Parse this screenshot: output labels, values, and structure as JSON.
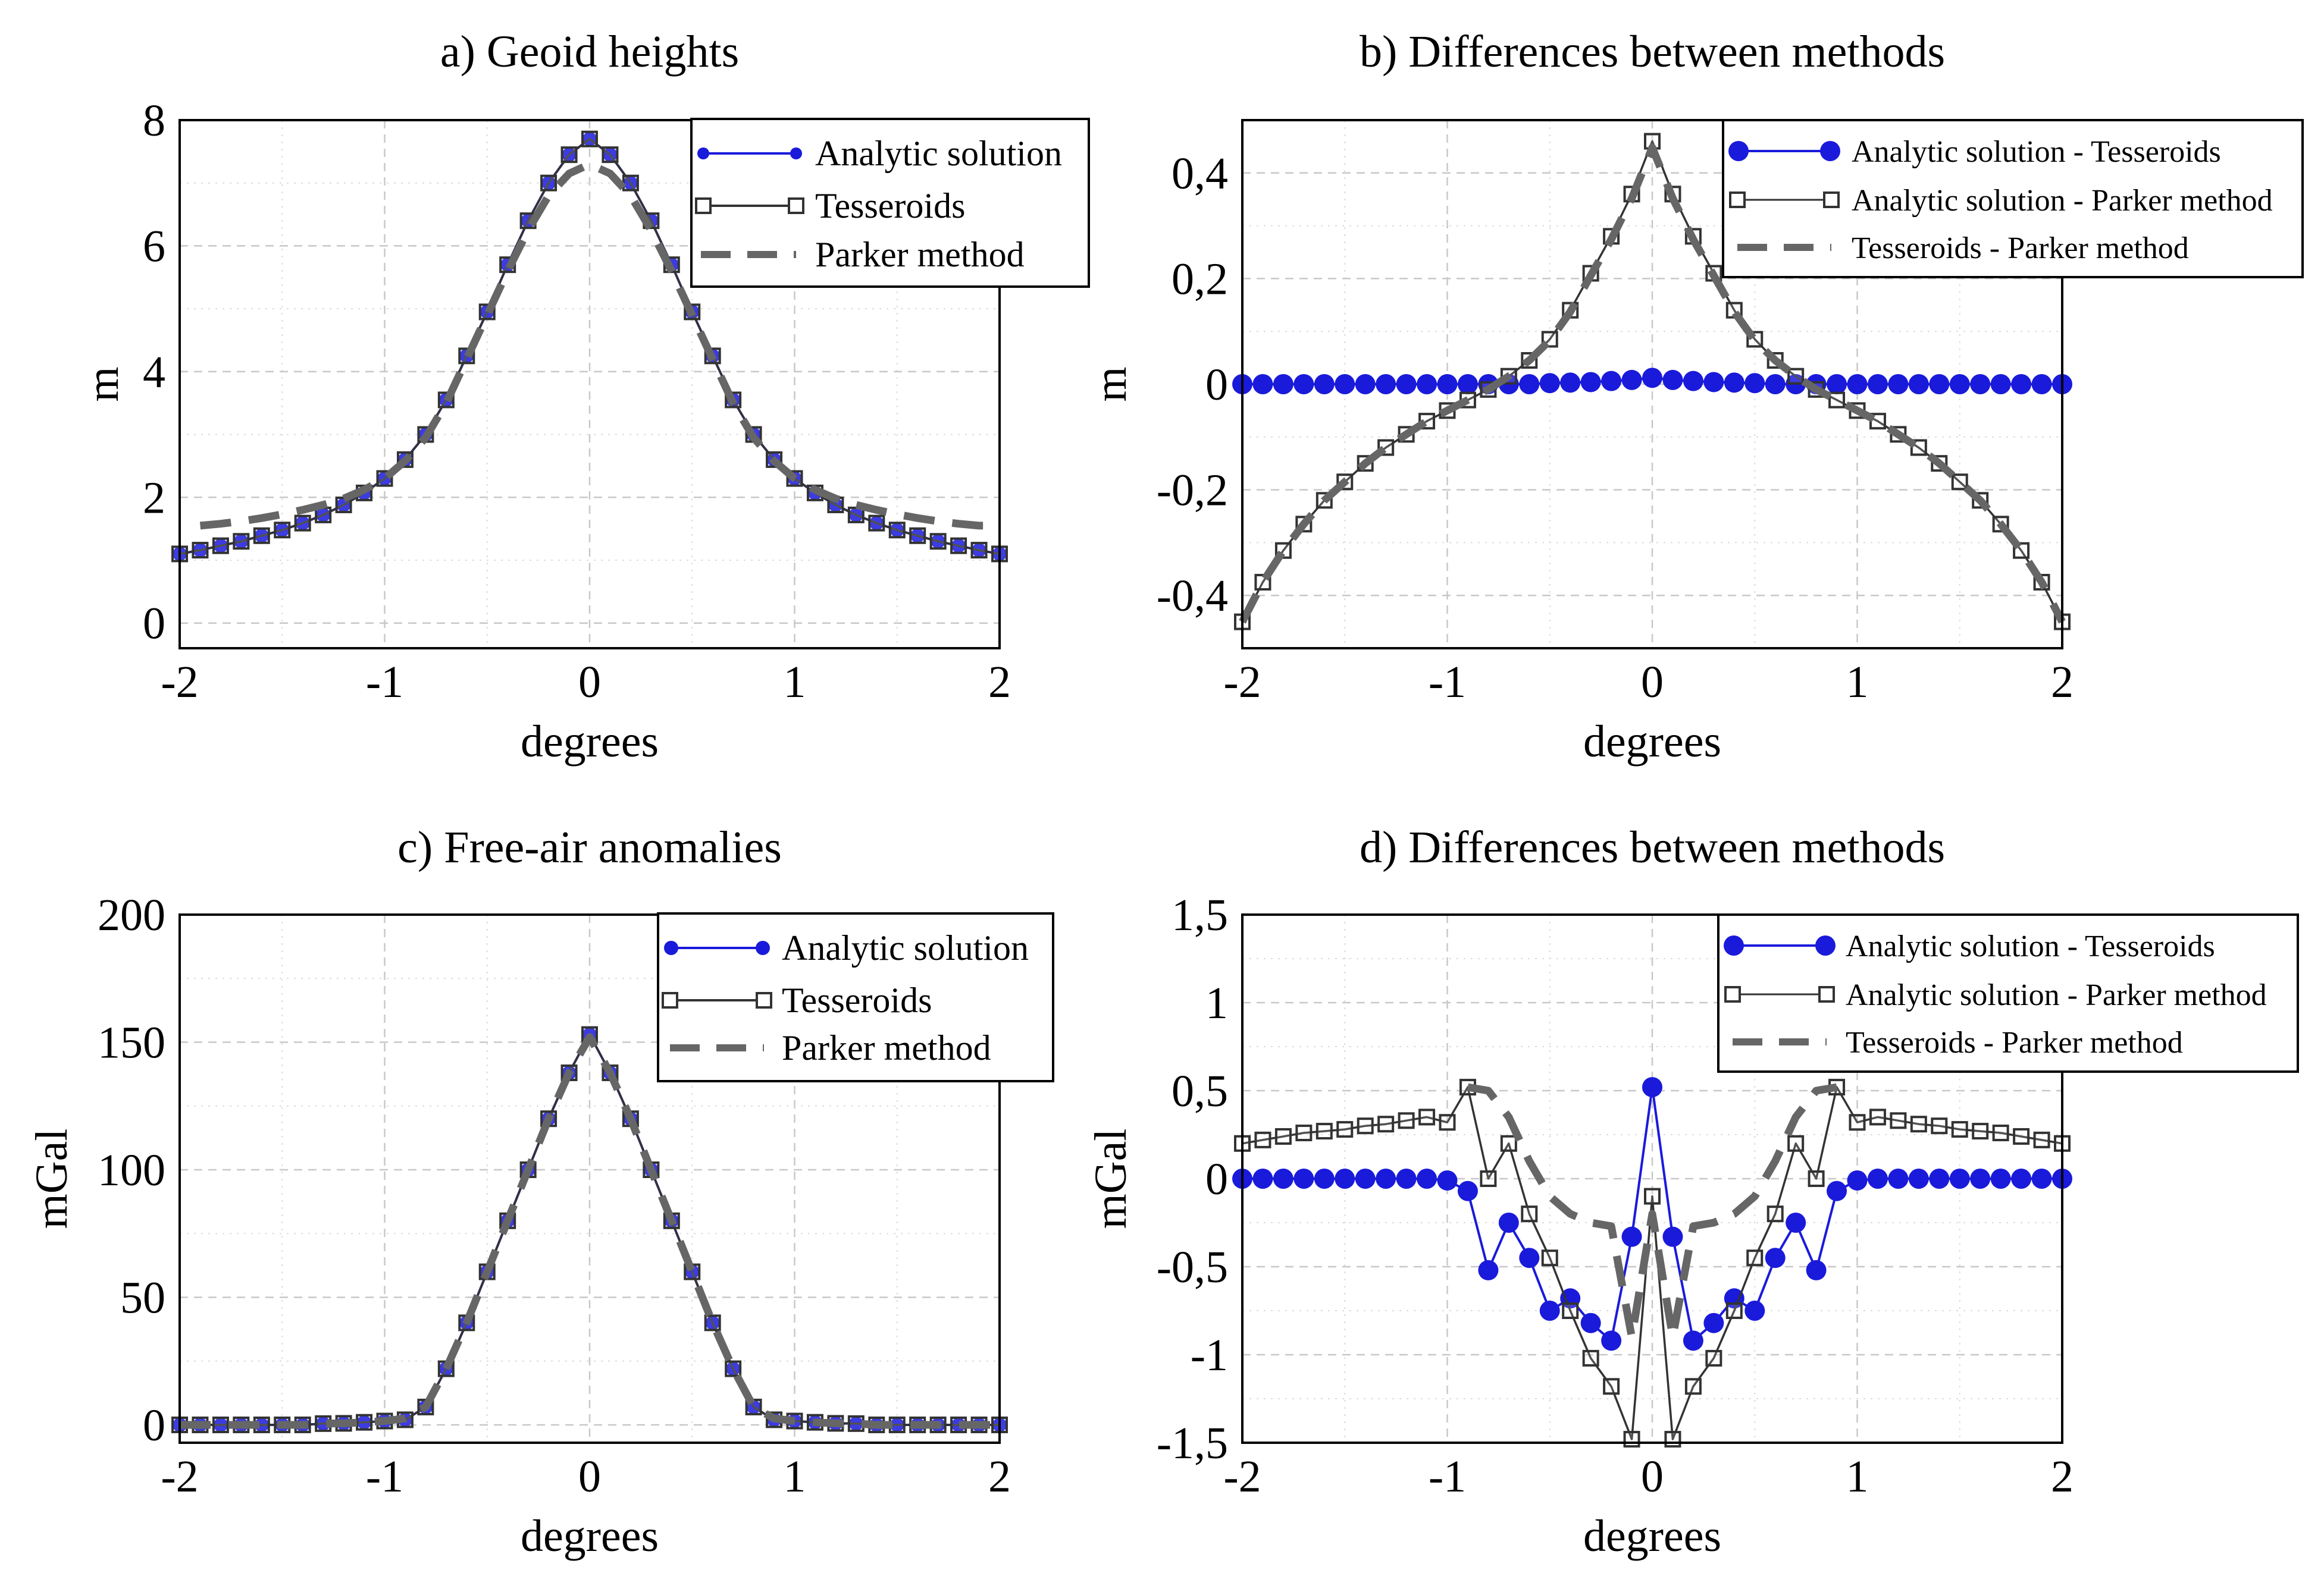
{
  "chart_data": [
    {
      "id": "a",
      "type": "line",
      "title": "a) Geoid heights",
      "xlabel": "degrees",
      "ylabel": "m",
      "xlim": [
        -2,
        2
      ],
      "ylim": [
        -0.4,
        8
      ],
      "xticks": [
        -2,
        -1,
        0,
        1,
        2
      ],
      "xtick_labels": [
        "-2",
        "-1",
        "0",
        "1",
        "2"
      ],
      "yticks": [
        0,
        2,
        4,
        6,
        8
      ],
      "ytick_labels": [
        "0",
        "2",
        "4",
        "6",
        "8"
      ],
      "grid": true,
      "legend_position": "top-right",
      "x": [
        -2.0,
        -1.9,
        -1.8,
        -1.7,
        -1.6,
        -1.5,
        -1.4,
        -1.3,
        -1.2,
        -1.1,
        -1.0,
        -0.9,
        -0.8,
        -0.7,
        -0.6,
        -0.5,
        -0.4,
        -0.3,
        -0.2,
        -0.1,
        0.0,
        0.1,
        0.2,
        0.3,
        0.4,
        0.5,
        0.6,
        0.7,
        0.8,
        0.9,
        1.0,
        1.1,
        1.2,
        1.3,
        1.4,
        1.5,
        1.6,
        1.7,
        1.8,
        1.9,
        2.0
      ],
      "series": [
        {
          "name": "Analytic solution",
          "style": "blue-dot",
          "color": "#1a1adb",
          "values": [
            1.1,
            1.16,
            1.23,
            1.3,
            1.39,
            1.48,
            1.59,
            1.72,
            1.88,
            2.07,
            2.3,
            2.6,
            3.0,
            3.55,
            4.25,
            4.95,
            5.7,
            6.4,
            7.0,
            7.45,
            7.7,
            7.45,
            7.0,
            6.4,
            5.7,
            4.95,
            4.25,
            3.55,
            3.0,
            2.6,
            2.3,
            2.07,
            1.88,
            1.72,
            1.59,
            1.48,
            1.39,
            1.3,
            1.23,
            1.16,
            1.1
          ]
        },
        {
          "name": "Tesseroids",
          "style": "square",
          "color": "#333333",
          "values": [
            1.1,
            1.16,
            1.23,
            1.3,
            1.39,
            1.48,
            1.59,
            1.72,
            1.88,
            2.07,
            2.3,
            2.6,
            3.0,
            3.55,
            4.25,
            4.95,
            5.7,
            6.4,
            7.0,
            7.45,
            7.7,
            7.45,
            7.0,
            6.4,
            5.7,
            4.95,
            4.25,
            3.55,
            3.0,
            2.6,
            2.3,
            2.07,
            1.88,
            1.72,
            1.59,
            1.48,
            1.39,
            1.3,
            1.23,
            1.16,
            1.1
          ]
        },
        {
          "name": "Parker method",
          "style": "dash",
          "color": "#666666",
          "values": [
            null,
            1.55,
            1.58,
            1.62,
            1.67,
            1.73,
            1.8,
            1.88,
            1.98,
            2.12,
            2.3,
            2.58,
            2.95,
            3.5,
            4.2,
            4.9,
            5.6,
            6.25,
            6.8,
            7.15,
            7.3,
            7.15,
            6.8,
            6.25,
            5.6,
            4.9,
            4.2,
            3.5,
            2.95,
            2.58,
            2.3,
            2.12,
            1.98,
            1.88,
            1.8,
            1.73,
            1.67,
            1.62,
            1.58,
            1.55,
            1.55
          ]
        }
      ]
    },
    {
      "id": "b",
      "type": "line",
      "title": "b) Differences between methods",
      "xlabel": "degrees",
      "ylabel": "m",
      "xlim": [
        -2,
        2
      ],
      "ylim": [
        -0.5,
        0.5
      ],
      "xticks": [
        -2,
        -1,
        0,
        1,
        2
      ],
      "xtick_labels": [
        "-2",
        "-1",
        "0",
        "1",
        "2"
      ],
      "yticks": [
        -0.4,
        -0.2,
        0,
        0.2,
        0.4
      ],
      "ytick_labels": [
        "-0,4",
        "-0,2",
        "0",
        "0,2",
        "0,4"
      ],
      "grid": true,
      "legend_position": "top-right",
      "x": [
        -2.0,
        -1.9,
        -1.8,
        -1.7,
        -1.6,
        -1.5,
        -1.4,
        -1.3,
        -1.2,
        -1.1,
        -1.0,
        -0.9,
        -0.8,
        -0.7,
        -0.6,
        -0.5,
        -0.4,
        -0.3,
        -0.2,
        -0.1,
        0.0,
        0.1,
        0.2,
        0.3,
        0.4,
        0.5,
        0.6,
        0.7,
        0.8,
        0.9,
        1.0,
        1.1,
        1.2,
        1.3,
        1.4,
        1.5,
        1.6,
        1.7,
        1.8,
        1.9,
        2.0
      ],
      "series": [
        {
          "name": "Analytic solution - Tesseroids",
          "style": "blue-dot-big",
          "color": "#1a1adb",
          "values": [
            0,
            0,
            0,
            0,
            0,
            0,
            0,
            0,
            0,
            0,
            0,
            0,
            0,
            0,
            0,
            0.002,
            0.003,
            0.004,
            0.006,
            0.008,
            0.012,
            0.008,
            0.006,
            0.004,
            0.003,
            0.002,
            0,
            0,
            0,
            0,
            0,
            0,
            0,
            0,
            0,
            0,
            0,
            0,
            0,
            0,
            0
          ]
        },
        {
          "name": "Analytic solution - Parker method",
          "style": "square",
          "color": "#333333",
          "values": [
            -0.45,
            -0.375,
            -0.315,
            -0.265,
            -0.22,
            -0.185,
            -0.15,
            -0.12,
            -0.095,
            -0.07,
            -0.05,
            -0.03,
            -0.01,
            0.015,
            0.045,
            0.085,
            0.14,
            0.21,
            0.28,
            0.36,
            0.46,
            0.36,
            0.28,
            0.21,
            0.14,
            0.085,
            0.045,
            0.015,
            -0.01,
            -0.03,
            -0.05,
            -0.07,
            -0.095,
            -0.12,
            -0.15,
            -0.185,
            -0.22,
            -0.265,
            -0.315,
            -0.375,
            -0.45
          ]
        },
        {
          "name": "Tesseroids - Parker method",
          "style": "dash",
          "color": "#666666",
          "values": [
            -0.45,
            -0.375,
            -0.315,
            -0.265,
            -0.22,
            -0.185,
            -0.15,
            -0.12,
            -0.095,
            -0.07,
            -0.05,
            -0.03,
            -0.01,
            0.015,
            0.045,
            0.083,
            0.137,
            0.206,
            0.274,
            0.352,
            0.448,
            0.352,
            0.274,
            0.206,
            0.137,
            0.083,
            0.045,
            0.015,
            -0.01,
            -0.03,
            -0.05,
            -0.07,
            -0.095,
            -0.12,
            -0.15,
            -0.185,
            -0.22,
            -0.265,
            -0.315,
            -0.375,
            -0.45
          ]
        }
      ]
    },
    {
      "id": "c",
      "type": "line",
      "title": "c) Free-air anomalies",
      "xlabel": "degrees",
      "ylabel": "mGal",
      "xlim": [
        -2,
        2
      ],
      "ylim": [
        -7,
        200
      ],
      "xticks": [
        -2,
        -1,
        0,
        1,
        2
      ],
      "xtick_labels": [
        "-2",
        "-1",
        "0",
        "1",
        "2"
      ],
      "yticks": [
        0,
        50,
        100,
        150,
        200
      ],
      "ytick_labels": [
        "0",
        "50",
        "100",
        "150",
        "200"
      ],
      "grid": true,
      "legend_position": "top-right",
      "x": [
        -2.0,
        -1.9,
        -1.8,
        -1.7,
        -1.6,
        -1.5,
        -1.4,
        -1.3,
        -1.2,
        -1.1,
        -1.0,
        -0.9,
        -0.8,
        -0.7,
        -0.6,
        -0.5,
        -0.4,
        -0.3,
        -0.2,
        -0.1,
        0.0,
        0.1,
        0.2,
        0.3,
        0.4,
        0.5,
        0.6,
        0.7,
        0.8,
        0.9,
        1.0,
        1.1,
        1.2,
        1.3,
        1.4,
        1.5,
        1.6,
        1.7,
        1.8,
        1.9,
        2.0
      ],
      "series": [
        {
          "name": "Analytic solution",
          "style": "blue-dot",
          "color": "#1a1adb",
          "values": [
            0,
            0,
            0,
            0,
            0,
            0,
            0,
            0.5,
            0.6,
            1,
            1.5,
            2,
            7,
            22,
            40,
            60,
            80,
            100,
            120,
            138,
            153,
            138,
            120,
            100,
            80,
            60,
            40,
            22,
            7,
            2,
            1.5,
            1,
            0.6,
            0.5,
            0,
            0,
            0,
            0,
            0,
            0,
            0
          ]
        },
        {
          "name": "Tesseroids",
          "style": "square",
          "color": "#333333",
          "values": [
            0,
            0,
            0,
            0,
            0,
            0,
            0,
            0.5,
            0.6,
            1,
            1.5,
            2,
            7,
            22,
            40,
            60,
            80,
            100,
            120,
            138,
            153,
            138,
            120,
            100,
            80,
            60,
            40,
            22,
            7,
            2,
            1.5,
            1,
            0.6,
            0.5,
            0,
            0,
            0,
            0,
            0,
            0,
            0
          ]
        },
        {
          "name": "Parker method",
          "style": "dash",
          "color": "#666666",
          "values": [
            0,
            0,
            0,
            0,
            0,
            0,
            0,
            0.5,
            0.6,
            1,
            1.5,
            2.5,
            7,
            22,
            40,
            60,
            80,
            100,
            120,
            138,
            152,
            138,
            120,
            100,
            80,
            60,
            40,
            22,
            7,
            2.5,
            1.5,
            1,
            0.6,
            0.5,
            0,
            0,
            0,
            0,
            0,
            0,
            0
          ]
        }
      ]
    },
    {
      "id": "d",
      "type": "line",
      "title": "d) Differences between methods",
      "xlabel": "degrees",
      "ylabel": "mGal",
      "xlim": [
        -2,
        2
      ],
      "ylim": [
        -1.5,
        1.5
      ],
      "xticks": [
        -2,
        -1,
        0,
        1,
        2
      ],
      "xtick_labels": [
        "-2",
        "-1",
        "0",
        "1",
        "2"
      ],
      "yticks": [
        -1.5,
        -1,
        -0.5,
        0,
        0.5,
        1,
        1.5
      ],
      "ytick_labels": [
        "-1,5",
        "-1",
        "-0,5",
        "0",
        "0,5",
        "1",
        "1,5"
      ],
      "grid": true,
      "legend_position": "top-right",
      "x": [
        -2.0,
        -1.9,
        -1.8,
        -1.7,
        -1.6,
        -1.5,
        -1.4,
        -1.3,
        -1.2,
        -1.1,
        -1.0,
        -0.9,
        -0.8,
        -0.7,
        -0.6,
        -0.5,
        -0.4,
        -0.3,
        -0.2,
        -0.1,
        0.0,
        0.1,
        0.2,
        0.3,
        0.4,
        0.5,
        0.6,
        0.7,
        0.8,
        0.9,
        1.0,
        1.1,
        1.2,
        1.3,
        1.4,
        1.5,
        1.6,
        1.7,
        1.8,
        1.9,
        2.0
      ],
      "series": [
        {
          "name": "Analytic solution - Tesseroids",
          "style": "blue-dot-big",
          "color": "#1a1adb",
          "values": [
            0,
            0,
            0,
            0,
            0,
            0,
            0,
            0,
            0,
            0,
            -0.01,
            -0.07,
            -0.52,
            -0.25,
            -0.45,
            -0.75,
            -0.68,
            -0.82,
            -0.92,
            -0.33,
            0.52,
            -0.33,
            -0.92,
            -0.82,
            -0.68,
            -0.75,
            -0.45,
            -0.25,
            -0.52,
            -0.07,
            -0.01,
            0,
            0,
            0,
            0,
            0,
            0,
            0,
            0,
            0,
            0
          ]
        },
        {
          "name": "Analytic solution - Parker method",
          "style": "square",
          "color": "#333333",
          "values": [
            0.2,
            0.22,
            0.24,
            0.26,
            0.27,
            0.28,
            0.3,
            0.31,
            0.33,
            0.35,
            0.32,
            0.52,
            0.0,
            0.2,
            -0.2,
            -0.45,
            -0.75,
            -1.02,
            -1.18,
            -1.48,
            -0.1,
            -1.48,
            -1.18,
            -1.02,
            -0.75,
            -0.45,
            -0.2,
            0.2,
            0.0,
            0.52,
            0.32,
            0.35,
            0.33,
            0.31,
            0.3,
            0.28,
            0.27,
            0.26,
            0.24,
            0.22,
            0.2
          ]
        },
        {
          "name": "Tesseroids - Parker method",
          "style": "dash",
          "color": "#666666",
          "values": [
            null,
            null,
            null,
            null,
            null,
            null,
            null,
            null,
            null,
            null,
            null,
            0.52,
            0.5,
            0.35,
            0.1,
            -0.1,
            -0.2,
            -0.25,
            -0.27,
            -0.9,
            -0.2,
            -0.9,
            -0.27,
            -0.25,
            -0.2,
            -0.1,
            0.1,
            0.35,
            0.5,
            0.52,
            null,
            null,
            null,
            null,
            null,
            null,
            null,
            null,
            null,
            null,
            null
          ]
        }
      ]
    }
  ]
}
